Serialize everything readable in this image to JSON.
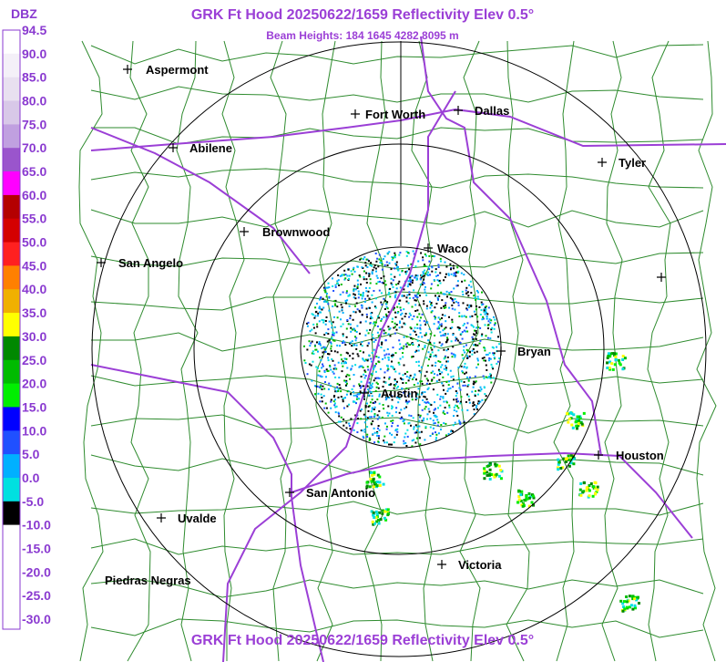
{
  "header": {
    "title": "GRK Ft Hood 20250622/1659 Reflectivity Elev 0.5°",
    "subtitle": "Beam Heights: 184 1645 4282 8095 m"
  },
  "legend": {
    "title": "DBZ",
    "labels": [
      "94.5",
      "90.0",
      "85.0",
      "80.0",
      "75.0",
      "70.0",
      "65.0",
      "60.0",
      "55.0",
      "50.0",
      "45.0",
      "40.0",
      "35.0",
      "30.0",
      "25.0",
      "20.0",
      "15.0",
      "10.0",
      "5.0",
      "0.0",
      "-5.0",
      "-10.0",
      "-15.0",
      "-20.0",
      "-25.0",
      "-30.0"
    ],
    "colors": [
      "#ffffff",
      "#f4f0f8",
      "#e8e0f0",
      "#d8c8e8",
      "#c0a0e0",
      "#9a55cc",
      "#ff00ff",
      "#b40000",
      "#d40000",
      "#ff2020",
      "#ff8000",
      "#f0b000",
      "#ffff00",
      "#008800",
      "#00bb00",
      "#00ee00",
      "#0000ff",
      "#2050ff",
      "#00b0ff",
      "#00e0e0",
      "#000000",
      "#ffffff",
      "#ffffff",
      "#ffffff",
      "#ffffff"
    ]
  },
  "cities": [
    {
      "name": "Aspermont"
    },
    {
      "name": "Abilene"
    },
    {
      "name": "Fort Worth"
    },
    {
      "name": "Dallas"
    },
    {
      "name": "Tyler"
    },
    {
      "name": "Brownwood"
    },
    {
      "name": "Waco"
    },
    {
      "name": "San Angelo"
    },
    {
      "name": "Bryan"
    },
    {
      "name": "Austin"
    },
    {
      "name": "Houston"
    },
    {
      "name": "San Antonio"
    },
    {
      "name": "Uvalde"
    },
    {
      "name": "Victoria"
    },
    {
      "name": "Piedras Negras"
    }
  ],
  "footer": "GRK Ft Hood 20250622/1659 Reflectivity Elev 0.5°"
}
